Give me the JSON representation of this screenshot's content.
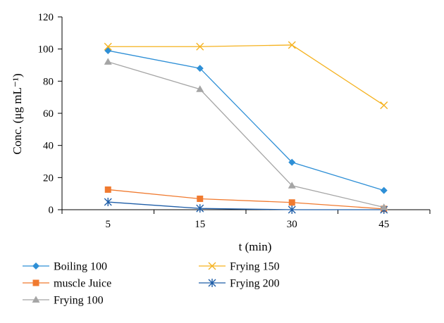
{
  "chart_data": {
    "type": "line",
    "categories": [
      "5",
      "15",
      "30",
      "45"
    ],
    "xlabel": "t (min)",
    "ylabel": "Conc. (μg mL⁻¹)",
    "ylim": [
      0,
      120
    ],
    "yticks": [
      0,
      20,
      40,
      60,
      80,
      100,
      120
    ],
    "grid": false,
    "legend_position": "bottom",
    "series": [
      {
        "name": "Boiling 100",
        "values": [
          99,
          88,
          29.5,
          12
        ],
        "color": "#2E8FD6",
        "marker": "diamond"
      },
      {
        "name": "Frying 150",
        "values": [
          101.5,
          101.5,
          102.5,
          65
        ],
        "color": "#F5B21F",
        "marker": "x"
      },
      {
        "name": "muscle Juice",
        "values": [
          12.5,
          6.8,
          4.5,
          0.5
        ],
        "color": "#F07A2F",
        "marker": "square"
      },
      {
        "name": "Frying 200",
        "values": [
          4.8,
          0.8,
          0,
          0
        ],
        "color": "#1F5EA8",
        "marker": "star"
      },
      {
        "name": "Frying 100",
        "values": [
          92,
          75,
          15,
          1.5
        ],
        "color": "#A5A5A5",
        "marker": "triangle"
      }
    ]
  }
}
